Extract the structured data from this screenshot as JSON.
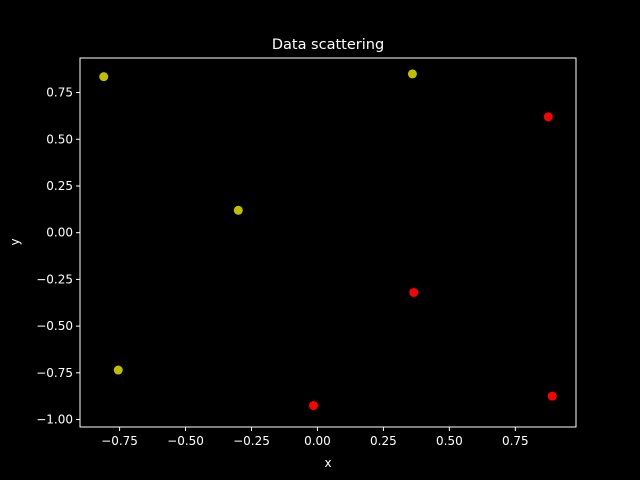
{
  "chart_data": {
    "type": "scatter",
    "title": "Data scattering",
    "xlabel": "x",
    "ylabel": "y",
    "xlim": [
      -0.9,
      0.98
    ],
    "ylim": [
      -1.04,
      0.935
    ],
    "xticks": [
      -0.75,
      -0.5,
      -0.25,
      0.0,
      0.25,
      0.5,
      0.75
    ],
    "xtick_labels": [
      "−0.75",
      "−0.50",
      "−0.25",
      "0.00",
      "0.25",
      "0.50",
      "0.75"
    ],
    "yticks": [
      -1.0,
      -0.75,
      -0.5,
      -0.25,
      0.0,
      0.25,
      0.5,
      0.75
    ],
    "ytick_labels": [
      "−1.00",
      "−0.75",
      "−0.50",
      "−0.25",
      "0.00",
      "0.25",
      "0.50",
      "0.75"
    ],
    "grid": false,
    "background": "#000000",
    "foreground": "#ffffff",
    "series": [
      {
        "color": "#bfbf00",
        "points": [
          {
            "x": -0.81,
            "y": 0.835
          },
          {
            "x": 0.36,
            "y": 0.85
          },
          {
            "x": -0.3,
            "y": 0.12
          },
          {
            "x": -0.755,
            "y": -0.735
          }
        ]
      },
      {
        "color": "#ff0000",
        "points": [
          {
            "x": 0.875,
            "y": 0.62
          },
          {
            "x": 0.365,
            "y": -0.32
          },
          {
            "x": -0.015,
            "y": -0.925
          },
          {
            "x": 0.89,
            "y": -0.875
          }
        ]
      }
    ]
  }
}
